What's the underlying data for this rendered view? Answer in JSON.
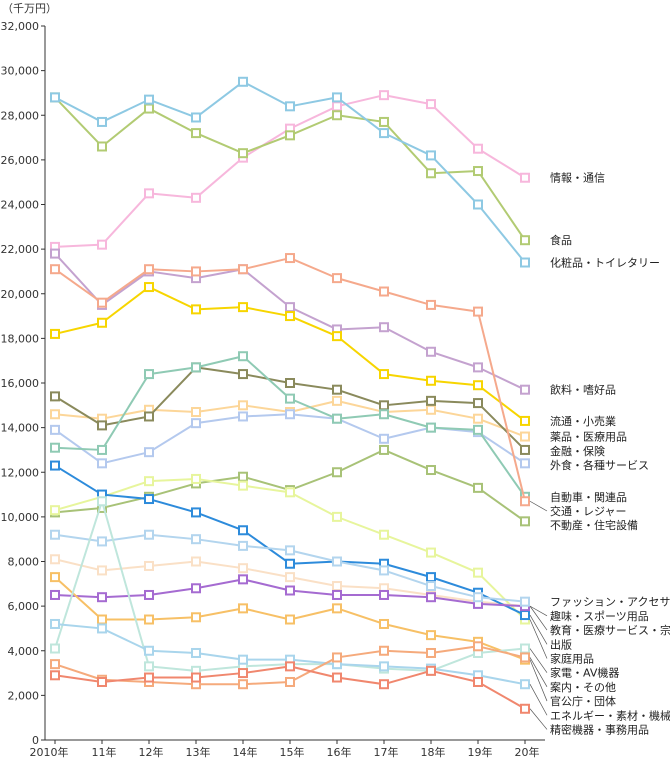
{
  "chart_data": {
    "type": "line",
    "unit_label": "（千万円）",
    "x": [
      "2010年",
      "11年",
      "12年",
      "13年",
      "14年",
      "15年",
      "16年",
      "17年",
      "18年",
      "19年",
      "20年"
    ],
    "ylim": [
      0,
      32000
    ],
    "yticks": [
      "0",
      "2,000",
      "4,000",
      "6,000",
      "8,000",
      "10,000",
      "12,000",
      "14,000",
      "16,000",
      "18,000",
      "20,000",
      "22,000",
      "24,000",
      "26,000",
      "28,000",
      "30,000",
      "32,000"
    ],
    "grid": false,
    "series": [
      {
        "name": "情報・通信",
        "color": "#f7b7dc",
        "values": [
          22100,
          22200,
          24500,
          24300,
          26100,
          27400,
          28400,
          28900,
          28500,
          26500,
          25200
        ]
      },
      {
        "name": "食品",
        "color": "#b2cb73",
        "values": [
          28800,
          26600,
          28300,
          27200,
          26300,
          27100,
          28000,
          27700,
          25400,
          25500,
          22400
        ]
      },
      {
        "name": "化粧品・トイレタリー",
        "color": "#8ec9e3",
        "values": [
          28800,
          27700,
          28700,
          27900,
          29500,
          28400,
          28800,
          27200,
          26200,
          24000,
          21400
        ]
      },
      {
        "name": "飲料・嗜好品",
        "color": "#c4a2cf",
        "values": [
          21800,
          19500,
          21000,
          20700,
          21100,
          19400,
          18400,
          18500,
          17400,
          16700,
          15700
        ]
      },
      {
        "name": "流通・小売業",
        "color": "#f7d500",
        "values": [
          18200,
          18700,
          20300,
          19300,
          19400,
          19000,
          18100,
          16400,
          16100,
          15900,
          14300
        ]
      },
      {
        "name": "薬品・医療用品",
        "color": "#fcd699",
        "values": [
          14600,
          14400,
          14800,
          14700,
          15000,
          14700,
          15200,
          14700,
          14800,
          14400,
          13600
        ]
      },
      {
        "name": "金融・保険",
        "color": "#8a8a5c",
        "values": [
          15400,
          14100,
          14500,
          16700,
          16400,
          16000,
          15700,
          15000,
          15200,
          15100,
          13000
        ]
      },
      {
        "name": "外食・各種サービス",
        "color": "#b4c9ee",
        "values": [
          13900,
          12400,
          12900,
          14200,
          14500,
          14600,
          14400,
          13500,
          14000,
          13800,
          12400
        ]
      },
      {
        "name": "自動車・関連品",
        "color": "#8fcab4",
        "values": [
          13100,
          13000,
          16400,
          16700,
          17200,
          15300,
          14400,
          14600,
          14000,
          13900,
          10900
        ]
      },
      {
        "name": "交通・レジャー",
        "color": "#f5a98c",
        "values": [
          21100,
          19600,
          21100,
          21000,
          21100,
          21600,
          20700,
          20100,
          19500,
          19200,
          10700
        ]
      },
      {
        "name": "不動産・住宅設備",
        "color": "#a8c277",
        "values": [
          10200,
          10400,
          10900,
          11500,
          11800,
          11200,
          12000,
          13000,
          12100,
          11300,
          9800
        ]
      },
      {
        "name": "家庭用品",
        "color": "#e7f59c",
        "values": [
          10300,
          10900,
          11600,
          11700,
          11400,
          11100,
          10000,
          9200,
          8400,
          7500,
          5400
        ]
      },
      {
        "name": "趣味・スポーツ用品",
        "color": "#fae0c6",
        "values": [
          8100,
          7600,
          7800,
          8000,
          7700,
          7300,
          6900,
          6800,
          6500,
          6200,
          6000
        ]
      },
      {
        "name": "出版",
        "color": "#2d8bdb",
        "values": [
          12300,
          11000,
          10800,
          10200,
          9400,
          7900,
          8000,
          7900,
          7300,
          6600,
          5600
        ]
      },
      {
        "name": "教育・医療サービス・宗教",
        "color": "#a56bd1",
        "values": [
          6500,
          6400,
          6500,
          6800,
          7200,
          6700,
          6500,
          6500,
          6400,
          6100,
          6000
        ]
      },
      {
        "name": "ファッション・アクセサリー",
        "color": "#b3d5ee",
        "values": [
          9200,
          8900,
          9200,
          9000,
          8700,
          8500,
          8000,
          7600,
          6900,
          6400,
          6200
        ]
      },
      {
        "name": "官公庁・団体",
        "color": "#f7c066",
        "values": [
          7300,
          5400,
          5400,
          5500,
          5900,
          5400,
          5900,
          5200,
          4700,
          4400,
          3600
        ]
      },
      {
        "name": "家電・AV機器",
        "color": "#bfe6dc",
        "values": [
          4100,
          10700,
          3300,
          3100,
          3300,
          3400,
          3400,
          3200,
          3100,
          3900,
          4100
        ]
      },
      {
        "name": "エネルギー・素材・機械",
        "color": "#a9d5ec",
        "values": [
          5200,
          5000,
          4000,
          3900,
          3600,
          3600,
          3400,
          3300,
          3200,
          2900,
          2500
        ]
      },
      {
        "name": "案内・その他",
        "color": "#f5aa7c",
        "values": [
          3400,
          2700,
          2600,
          2500,
          2500,
          2600,
          3700,
          4000,
          3900,
          4200,
          3700
        ]
      },
      {
        "name": "精密機器・事務用品",
        "color": "#f0876e",
        "values": [
          2900,
          2600,
          2800,
          2800,
          3000,
          3300,
          2800,
          2500,
          3100,
          2600,
          1400
        ]
      }
    ]
  }
}
